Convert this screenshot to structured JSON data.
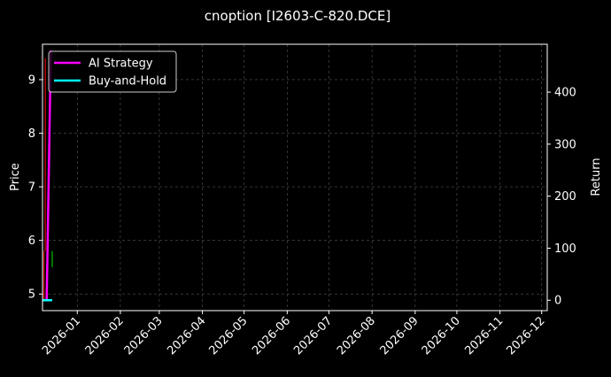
{
  "chart_data": {
    "type": "line",
    "title": "cnoption [I2603-C-820.DCE]",
    "ylabel": "Price",
    "y2label": "Return",
    "xlim": [
      "2025-12-07",
      "2026-12-05"
    ],
    "ylim": [
      4.69,
      9.66
    ],
    "y2lim": [
      -20,
      492
    ],
    "grid": true,
    "legend_position": "top-left",
    "x_ticks": [
      "2026-01",
      "2026-02",
      "2026-03",
      "2026-04",
      "2026-05",
      "2026-06",
      "2026-07",
      "2026-08",
      "2026-09",
      "2026-10",
      "2026-11",
      "2026-12"
    ],
    "y_ticks": [
      5,
      6,
      7,
      8,
      9
    ],
    "y2_ticks": [
      0,
      100,
      200,
      300,
      400
    ],
    "candles": [
      {
        "date": "2025-12-08",
        "open": 5.8,
        "high": 5.8,
        "low": 4.9,
        "close": 4.9
      },
      {
        "date": "2025-12-09",
        "open": 9.4,
        "high": 9.4,
        "low": 5.8,
        "close": 5.8
      },
      {
        "date": "2025-12-14",
        "open": 5.5,
        "high": 5.8,
        "low": 5.5,
        "close": 5.8
      }
    ],
    "series": [
      {
        "name": "AI Strategy",
        "color": "#ff00ff",
        "x": [
          "2025-12-08",
          "2025-12-10",
          "2025-12-13"
        ],
        "values": [
          0,
          0,
          480
        ]
      },
      {
        "name": "Buy-and-Hold",
        "color": "#00ffff",
        "x": [
          "2025-12-07",
          "2025-12-14"
        ],
        "values": [
          0,
          0
        ]
      }
    ],
    "colors": {
      "up": "#00b000",
      "down": "#d00000"
    }
  }
}
